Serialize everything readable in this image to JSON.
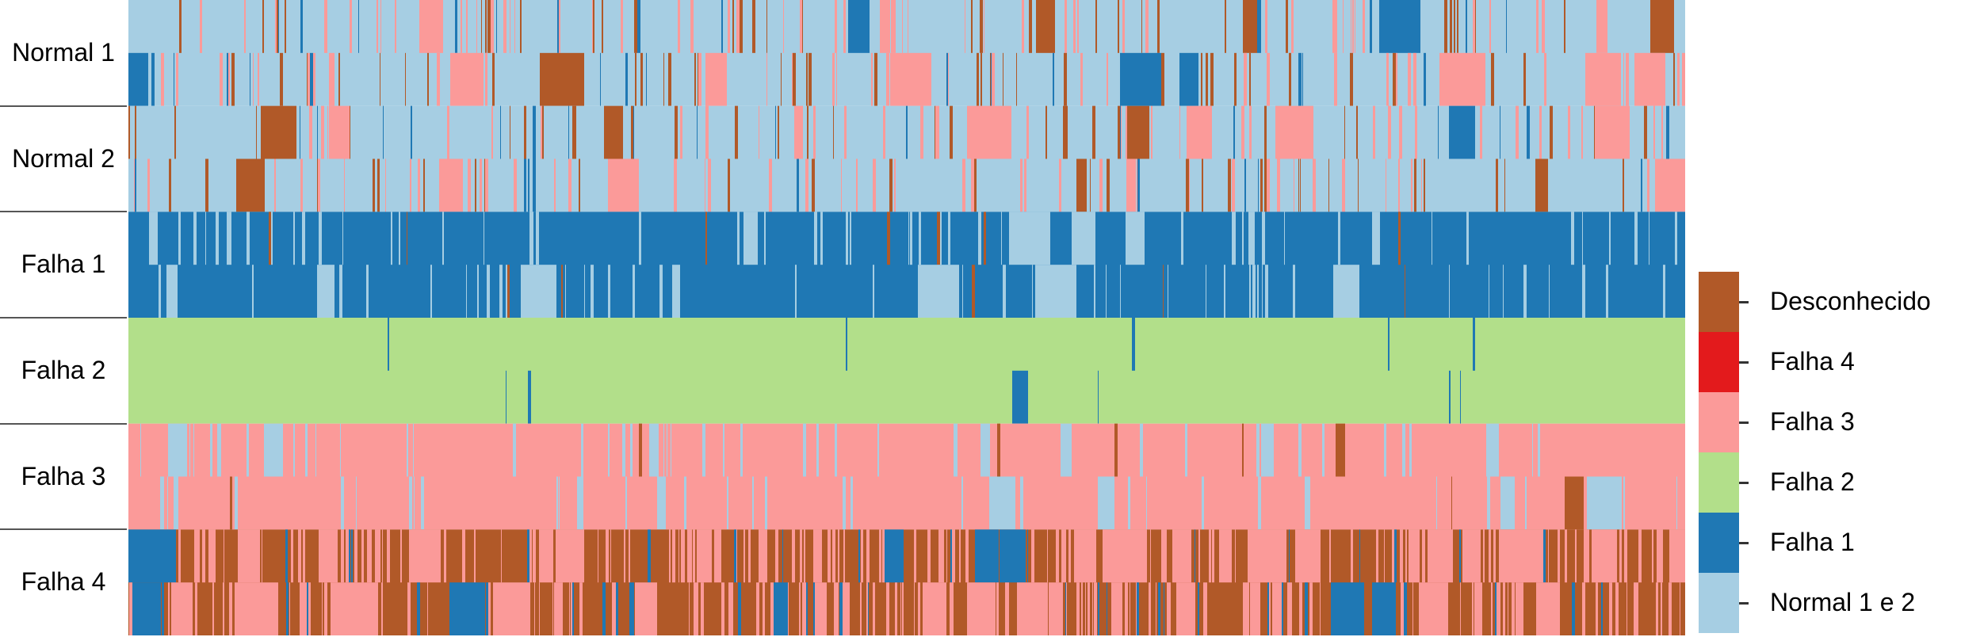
{
  "chart_data": {
    "type": "heatmap",
    "title": "",
    "rows": [
      {
        "label": "Normal 1",
        "base_class": "Normal 1 e 2"
      },
      {
        "label": "Normal 2",
        "base_class": "Normal 1 e 2"
      },
      {
        "label": "Falha 1",
        "base_class": "Falha 1"
      },
      {
        "label": "Falha 2",
        "base_class": "Falha 2"
      },
      {
        "label": "Falha 3",
        "base_class": "Falha 3"
      },
      {
        "label": "Falha 4",
        "base_class": "Desconhecido"
      }
    ],
    "legend": {
      "placement": "right",
      "entries": [
        {
          "label": "Desconhecido",
          "color": "#b15928"
        },
        {
          "label": "Falha 4",
          "color": "#e31a1c"
        },
        {
          "label": "Falha 3",
          "color": "#fb9a99"
        },
        {
          "label": "Falha 2",
          "color": "#b2df8a"
        },
        {
          "label": "Falha 1",
          "color": "#1f78b4"
        },
        {
          "label": "Normal 1 e 2",
          "color": "#a6cee3"
        }
      ]
    },
    "grid": false
  }
}
